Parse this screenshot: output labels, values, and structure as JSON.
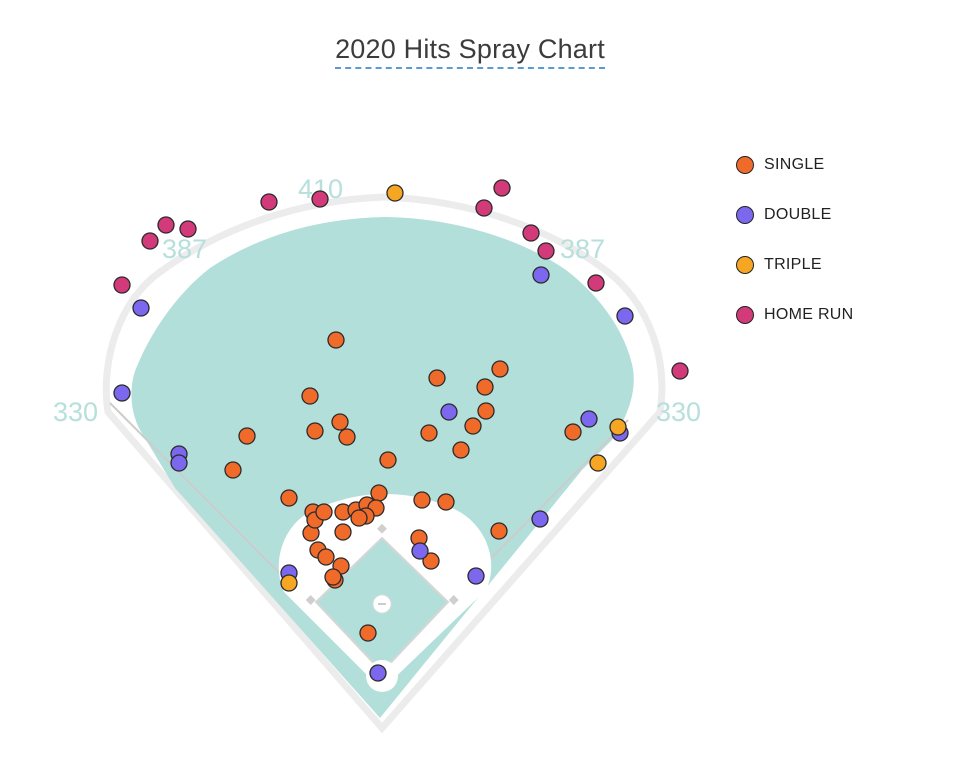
{
  "chart_data": {
    "type": "scatter",
    "title": "2020 Hits Spray Chart",
    "distances": {
      "left_line": "330",
      "left_center": "387",
      "center": "410",
      "right_center": "387",
      "right_line": "330"
    },
    "legend_placement": "right",
    "series": [
      {
        "name": "SINGLE",
        "color": "#f06a2a",
        "points": [
          [
            336,
            340
          ],
          [
            310,
            396
          ],
          [
            340,
            422
          ],
          [
            315,
            431
          ],
          [
            347,
            437
          ],
          [
            247,
            436
          ],
          [
            233,
            470
          ],
          [
            289,
            498
          ],
          [
            388,
            460
          ],
          [
            429,
            433
          ],
          [
            461,
            450
          ],
          [
            473,
            426
          ],
          [
            486,
            411
          ],
          [
            485,
            387
          ],
          [
            500,
            369
          ],
          [
            437,
            378
          ],
          [
            313,
            512
          ],
          [
            311,
            533
          ],
          [
            315,
            520
          ],
          [
            324,
            512
          ],
          [
            343,
            512
          ],
          [
            356,
            510
          ],
          [
            367,
            505
          ],
          [
            379,
            493
          ],
          [
            376,
            508
          ],
          [
            366,
            516
          ],
          [
            359,
            518
          ],
          [
            343,
            532
          ],
          [
            318,
            550
          ],
          [
            326,
            557
          ],
          [
            341,
            566
          ],
          [
            335,
            580
          ],
          [
            333,
            577
          ],
          [
            422,
            500
          ],
          [
            446,
            502
          ],
          [
            419,
            538
          ],
          [
            431,
            561
          ],
          [
            499,
            531
          ],
          [
            573,
            432
          ],
          [
            368,
            633
          ]
        ]
      },
      {
        "name": "DOUBLE",
        "color": "#7b68ee",
        "points": [
          [
            141,
            308
          ],
          [
            122,
            393
          ],
          [
            179,
            454
          ],
          [
            179,
            463
          ],
          [
            289,
            573
          ],
          [
            378,
            673
          ],
          [
            420,
            551
          ],
          [
            476,
            576
          ],
          [
            540,
            519
          ],
          [
            449,
            412
          ],
          [
            589,
            419
          ],
          [
            620,
            433
          ],
          [
            625,
            316
          ],
          [
            541,
            275
          ]
        ]
      },
      {
        "name": "TRIPLE",
        "color": "#f6a623",
        "points": [
          [
            395,
            193
          ],
          [
            618,
            427
          ],
          [
            598,
            463
          ],
          [
            289,
            583
          ]
        ]
      },
      {
        "name": "HOME RUN",
        "color": "#d23a7a",
        "points": [
          [
            122,
            285
          ],
          [
            150,
            241
          ],
          [
            166,
            225
          ],
          [
            188,
            229
          ],
          [
            269,
            202
          ],
          [
            320,
            199
          ],
          [
            484,
            208
          ],
          [
            502,
            188
          ],
          [
            531,
            233
          ],
          [
            546,
            251
          ],
          [
            596,
            283
          ],
          [
            680,
            371
          ]
        ]
      }
    ]
  }
}
